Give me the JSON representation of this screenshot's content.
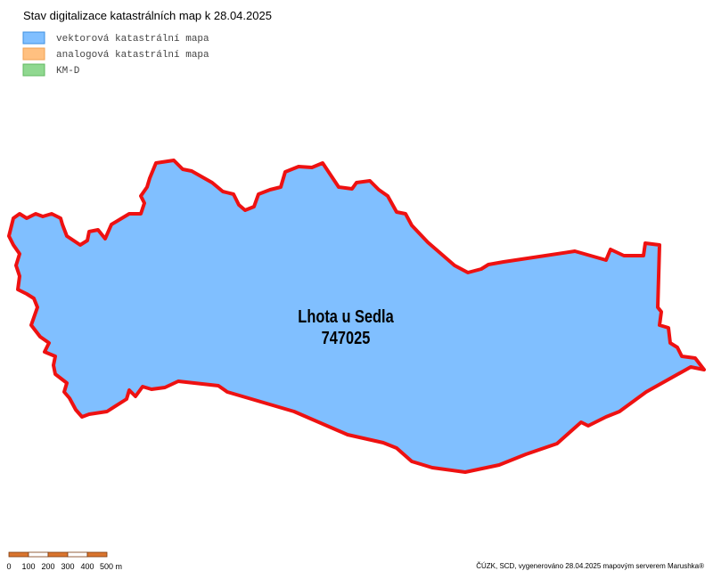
{
  "title": "Stav digitalizace katastrálních map k 28.04.2025",
  "legend": [
    {
      "label": "vektorová katastrální mapa",
      "color": "#80bfff",
      "border": "#3d8fe0"
    },
    {
      "label": "analogová katastrální mapa",
      "color": "#ffc080",
      "border": "#f0a050"
    },
    {
      "label": "KM-D",
      "color": "#90d890",
      "border": "#60b860"
    }
  ],
  "area": {
    "name": "Lhota u Sedla",
    "code": "747025",
    "fill": "#80bfff",
    "outline": "#ee1111"
  },
  "scale": {
    "labels": [
      "0",
      "100",
      "200",
      "300",
      "400",
      "500 m"
    ]
  },
  "attribution": "ČÚZK, SCD, vygenerováno 28.04.2025 mapovým serverem Marushka®"
}
